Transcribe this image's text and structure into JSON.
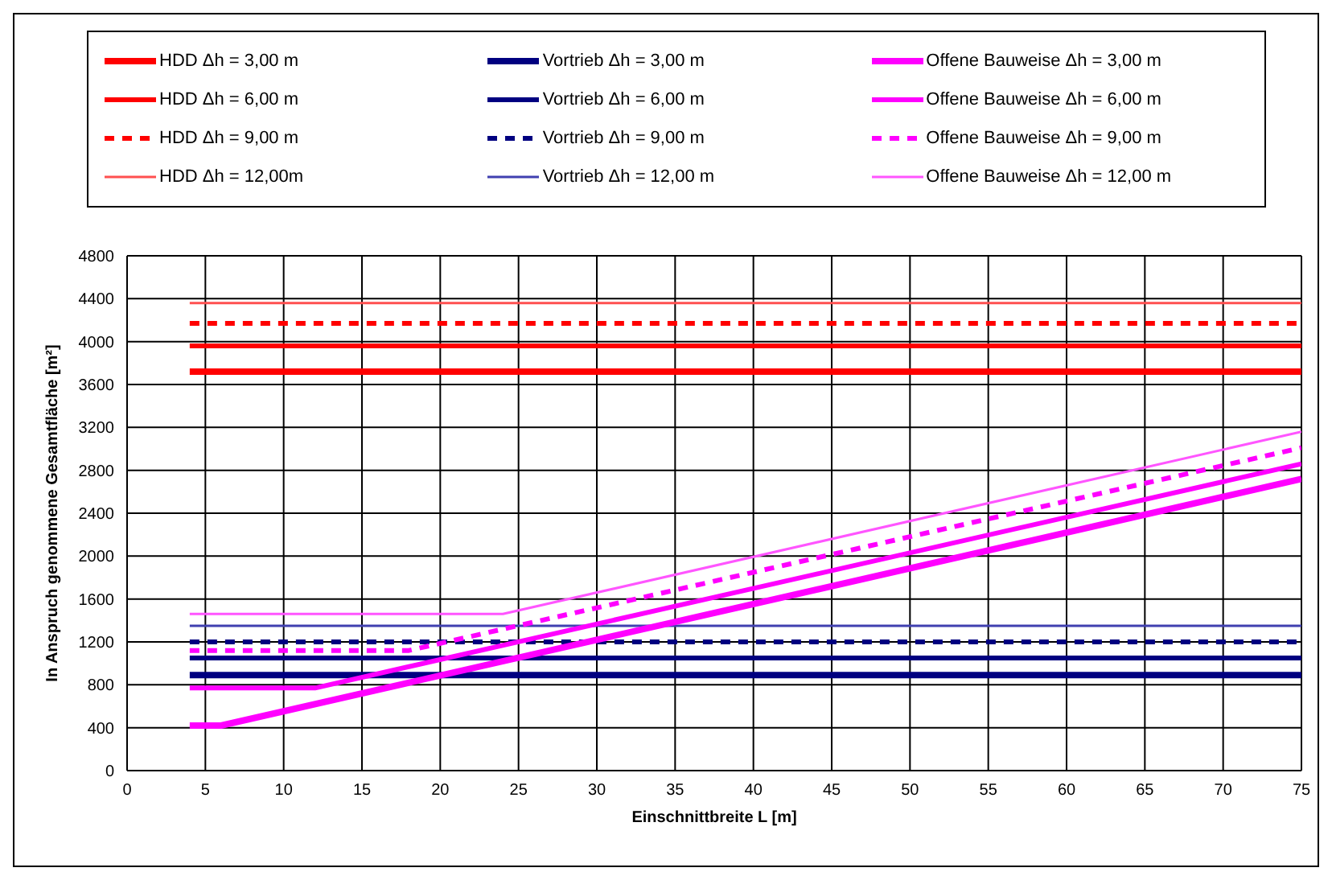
{
  "chart_data": {
    "type": "line",
    "xlabel": "Einschnittbreite L [m]",
    "ylabel": "In Anspruch genommene Gesamtfläche [m²]",
    "xlim": [
      0,
      75
    ],
    "xticks": [
      0,
      5,
      10,
      15,
      20,
      25,
      30,
      35,
      40,
      45,
      50,
      55,
      60,
      65,
      70,
      75
    ],
    "ylim": [
      0,
      4800
    ],
    "yticks": [
      0,
      400,
      800,
      1200,
      1600,
      2000,
      2400,
      2800,
      3200,
      3600,
      4000,
      4400,
      4800
    ],
    "grid": true,
    "legend": "top",
    "marker": "none",
    "series": [
      {
        "name": "HDD Δh = 3,00 m",
        "color": "#ff0000",
        "x": [
          4,
          75
        ],
        "values": [
          3720,
          3720
        ]
      },
      {
        "name": "HDD Δh = 6,00 m",
        "color": "#ff0000",
        "x": [
          4,
          75
        ],
        "values": [
          3960,
          3960
        ]
      },
      {
        "name": "HDD Δh = 9,00 m",
        "color": "#ff0000",
        "line_style": "dashed",
        "x": [
          4,
          75
        ],
        "values": [
          4170,
          4170
        ]
      },
      {
        "name": "HDD Δh = 12,00m",
        "color": "#ff5050",
        "x": [
          4,
          75
        ],
        "values": [
          4360,
          4360
        ]
      },
      {
        "name": "Vortrieb Δh = 3,00 m",
        "color": "#000080",
        "x": [
          4,
          75
        ],
        "values": [
          890,
          890
        ]
      },
      {
        "name": "Vortrieb Δh = 6,00 m",
        "color": "#000080",
        "x": [
          4,
          75
        ],
        "values": [
          1050,
          1050
        ]
      },
      {
        "name": "Vortrieb Δh = 9,00 m",
        "color": "#000080",
        "line_style": "dashed",
        "x": [
          4,
          75
        ],
        "values": [
          1200,
          1200
        ]
      },
      {
        "name": "Vortrieb Δh = 12,00 m",
        "color": "#4040b0",
        "x": [
          4,
          75
        ],
        "values": [
          1350,
          1350
        ]
      },
      {
        "name": "Offene Bauweise Δh = 3,00 m",
        "color": "#ff00ff",
        "x": [
          4,
          6,
          75
        ],
        "values": [
          420,
          420,
          2720
        ]
      },
      {
        "name": "Offene Bauweise Δh = 6,00 m",
        "color": "#ff00ff",
        "x": [
          4,
          12,
          75
        ],
        "values": [
          770,
          770,
          2860
        ]
      },
      {
        "name": "Offene Bauweise Δh = 9,00 m",
        "color": "#ff00ff",
        "line_style": "dashed",
        "x": [
          4,
          18,
          75
        ],
        "values": [
          1120,
          1120,
          3010
        ]
      },
      {
        "name": "Offene Bauweise Δh = 12,00 m",
        "color": "#ff55ff",
        "x": [
          4,
          24,
          75
        ],
        "values": [
          1460,
          1460,
          3160
        ]
      }
    ]
  }
}
